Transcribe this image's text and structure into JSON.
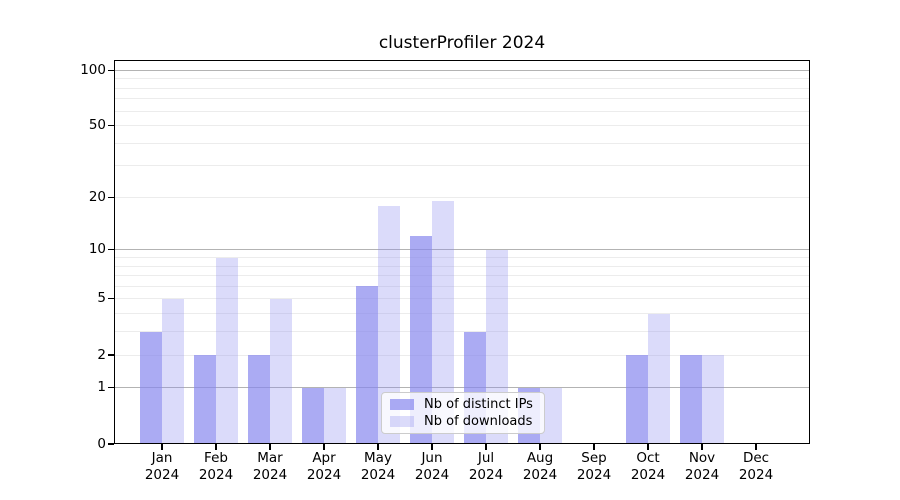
{
  "title": "clusterProfiler 2024",
  "chart_data": {
    "type": "bar",
    "title": "clusterProfiler 2024",
    "categories": [
      "Jan",
      "Feb",
      "Mar",
      "Apr",
      "May",
      "Jun",
      "Jul",
      "Aug",
      "Sep",
      "Oct",
      "Nov",
      "Dec"
    ],
    "year_label": "2024",
    "series": [
      {
        "name": "Nb of distinct IPs",
        "color": "rgba(136,136,238,0.7)",
        "values": [
          3,
          2,
          2,
          1,
          6,
          12,
          3,
          1,
          0,
          2,
          2,
          0
        ]
      },
      {
        "name": "Nb of downloads",
        "color": "rgba(136,136,238,0.3)",
        "values": [
          5,
          9,
          5,
          1,
          18,
          19,
          10,
          1,
          0,
          4,
          2,
          0
        ]
      }
    ],
    "yticks": [
      0,
      1,
      2,
      5,
      10,
      20,
      50,
      100
    ],
    "scale": "log10(1+y)",
    "ylim": [
      0,
      113.6
    ],
    "grid": true,
    "legend_position": "lower center"
  },
  "colors": {
    "major_grid": "#b3b3b3",
    "minor_grid": "#ececec",
    "axis": "#000000",
    "text": "#000000"
  }
}
